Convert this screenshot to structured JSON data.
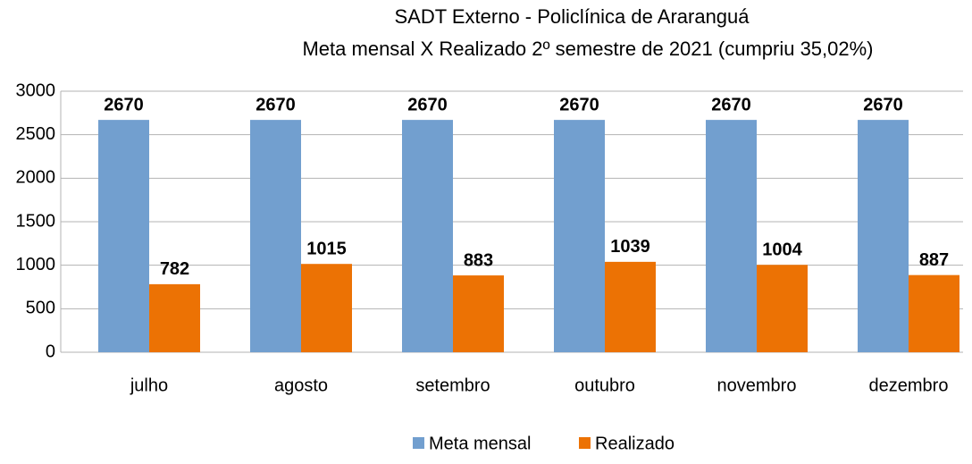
{
  "chart_data": {
    "type": "bar",
    "title": "SADT Externo - Policlínica de Araranguá",
    "subtitle": "Meta mensal X Realizado 2º semestre de 2021 (cumpriu 35,02%)",
    "categories": [
      "julho",
      "agosto",
      "setembro",
      "outubro",
      "novembro",
      "dezembro"
    ],
    "series": [
      {
        "name": "Meta mensal",
        "color": "#729fcf",
        "values": [
          2670,
          2670,
          2670,
          2670,
          2670,
          2670
        ]
      },
      {
        "name": "Realizado",
        "color": "#ec7204",
        "values": [
          782,
          1015,
          883,
          1039,
          1004,
          887
        ]
      }
    ],
    "ylim": [
      0,
      3000
    ],
    "yticks": [
      0,
      500,
      1000,
      1500,
      2000,
      2500,
      3000
    ],
    "grid": true,
    "legend": "bottom"
  }
}
